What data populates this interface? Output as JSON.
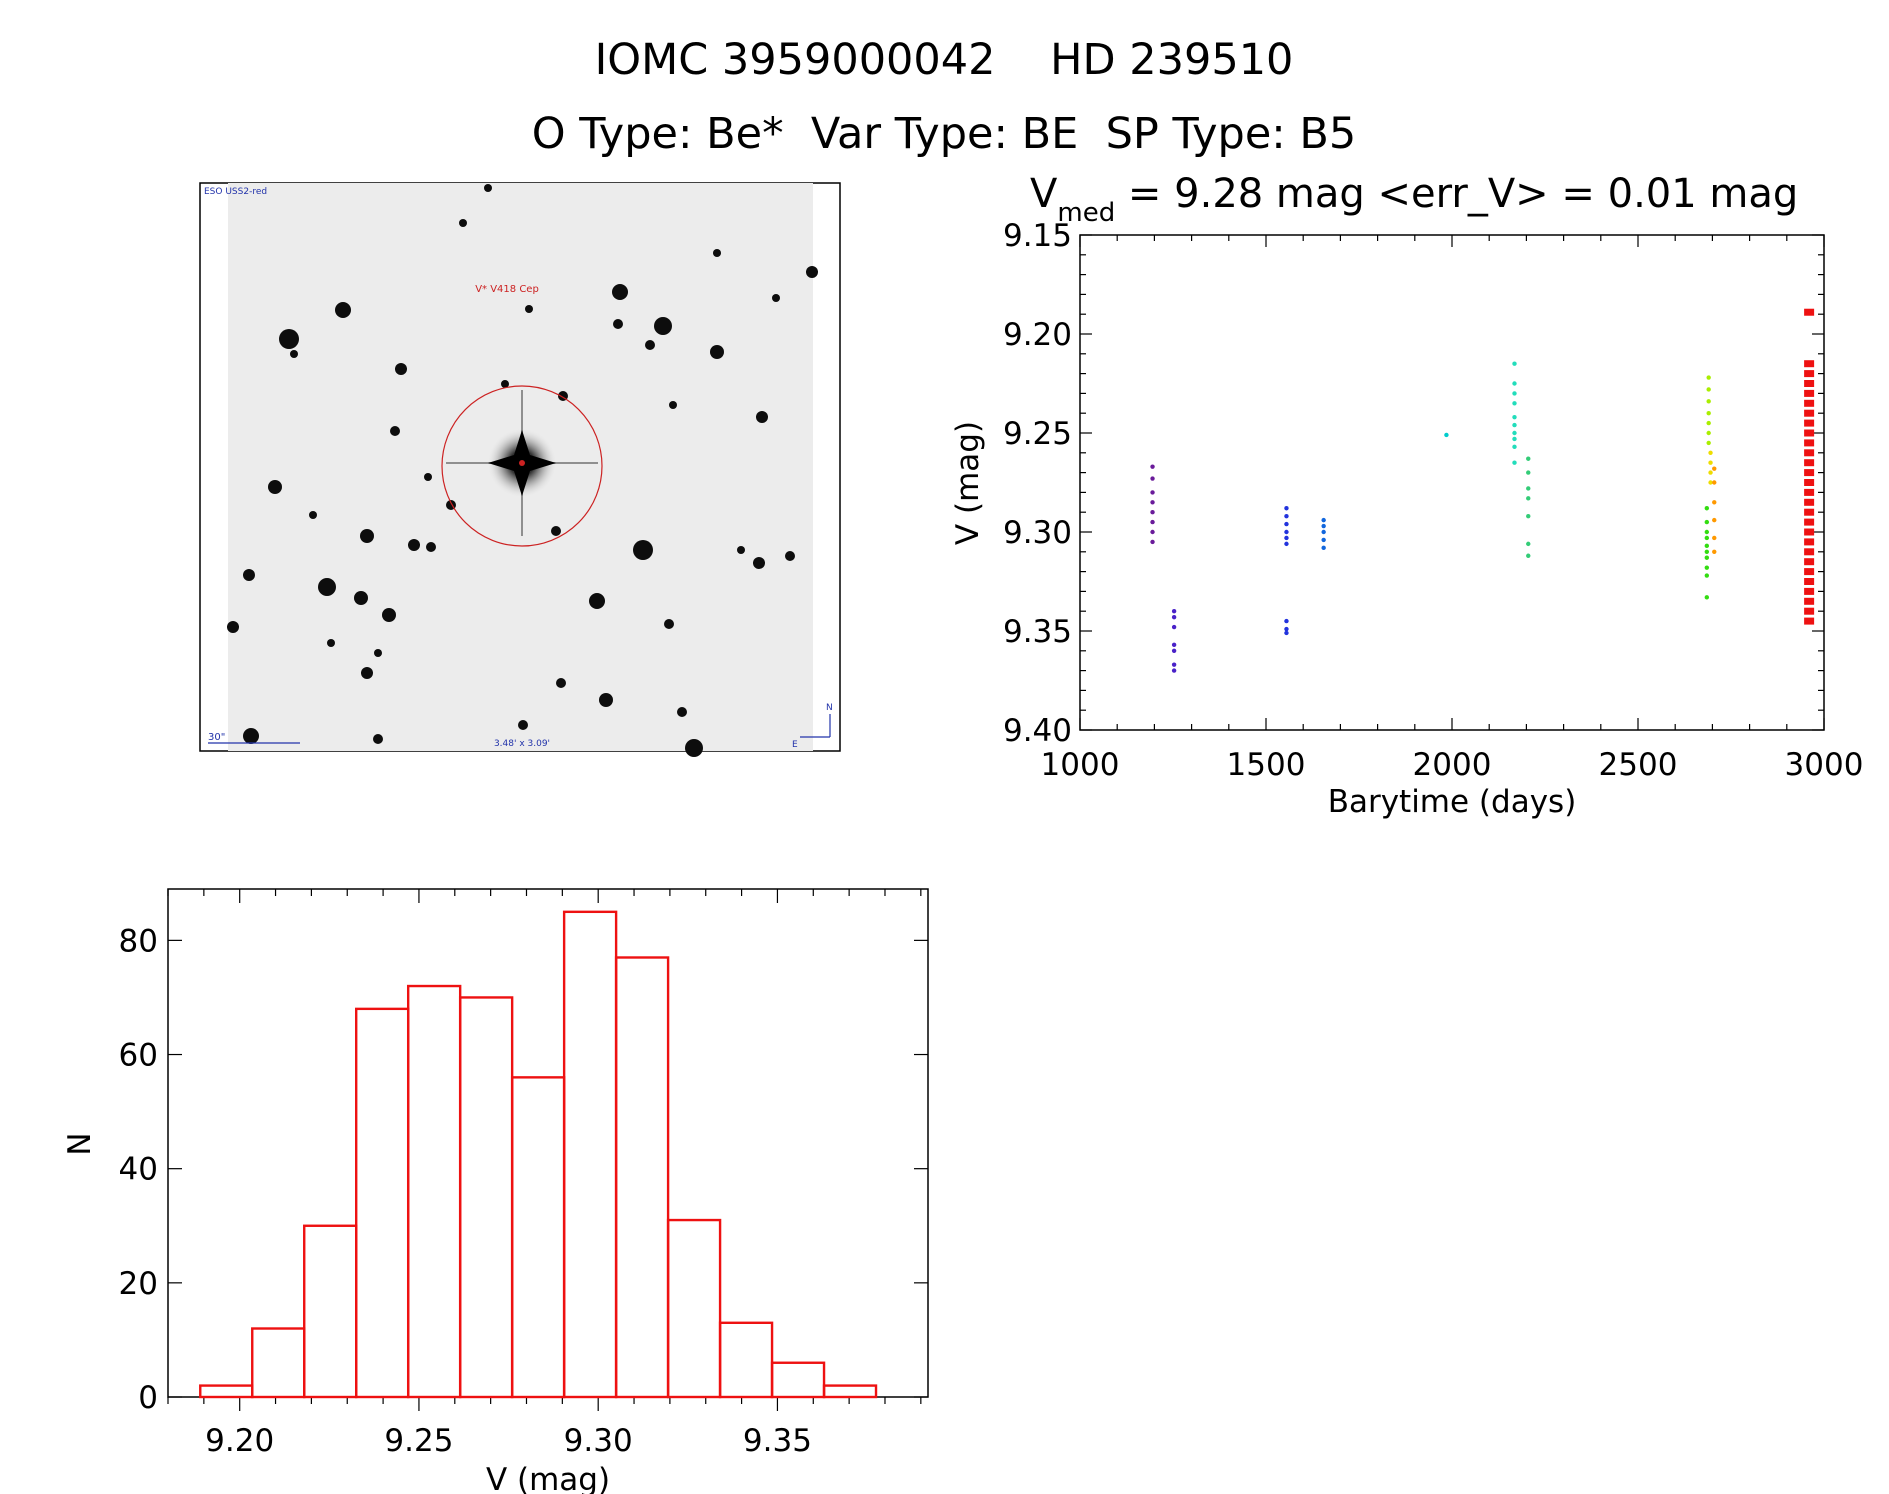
{
  "header": {
    "title": "IOMC 3959000042    HD 239510",
    "subtitle": "O Type: Be*  Var Type: BE  SP Type: B5"
  },
  "finder": {
    "survey_label": "ESO USS2-red",
    "target_label": "V* V418 Cep",
    "scale_label": "30\"",
    "size_label": "3.48' x 3.09'",
    "north_label": "N",
    "east_label": "E",
    "colors": {
      "circle": "#cc2222",
      "labels_blue": "#2233aa",
      "labels_red": "#cc2222"
    }
  },
  "chart_data": [
    {
      "type": "scatter",
      "title_parts": {
        "v": "V",
        "sub": "med",
        "rest": " = 9.28 mag <err_V> = 0.01 mag"
      },
      "xlabel": "Barytime (days)",
      "ylabel": "V (mag)",
      "xlim": [
        1000,
        3000
      ],
      "ylim": [
        9.4,
        9.15
      ],
      "xticks": [
        "1000",
        "1500",
        "2000",
        "2500",
        "3000"
      ],
      "yticks": [
        "9.15",
        "9.20",
        "9.25",
        "9.30",
        "9.35",
        "9.40"
      ],
      "groups": [
        {
          "x": 1195,
          "color": "#6a1b9a",
          "y": [
            9.267,
            9.273,
            9.28,
            9.285,
            9.29,
            9.295,
            9.3,
            9.305
          ]
        },
        {
          "x": 1253,
          "color": "#4a22c8",
          "y": [
            9.34,
            9.343,
            9.348,
            9.357,
            9.36,
            9.367,
            9.37
          ]
        },
        {
          "x": 1555,
          "color": "#2233dd",
          "y": [
            9.288,
            9.292,
            9.296,
            9.3,
            9.303,
            9.306,
            9.345,
            9.349,
            9.351
          ]
        },
        {
          "x": 1655,
          "color": "#1166dd",
          "y": [
            9.294,
            9.297,
            9.3,
            9.304,
            9.308
          ]
        },
        {
          "x": 1985,
          "color": "#00cccc",
          "y": [
            9.251
          ]
        },
        {
          "x": 2168,
          "color": "#22ddbb",
          "y": [
            9.215,
            9.225,
            9.23,
            9.235,
            9.242,
            9.246,
            9.25,
            9.253,
            9.257,
            9.265
          ]
        },
        {
          "x": 2205,
          "color": "#33cc77",
          "y": [
            9.263,
            9.27,
            9.278,
            9.283,
            9.292,
            9.306,
            9.312
          ]
        },
        {
          "x": 2685,
          "color": "#33dd11",
          "y": [
            9.288,
            9.295,
            9.3,
            9.303,
            9.307,
            9.31,
            9.313,
            9.318,
            9.322,
            9.333
          ]
        },
        {
          "x": 2690,
          "color": "#aaee00",
          "y": [
            9.222,
            9.228,
            9.234,
            9.24,
            9.245,
            9.25,
            9.255
          ]
        },
        {
          "x": 2695,
          "color": "#eedd00",
          "y": [
            9.26,
            9.265,
            9.27,
            9.275
          ]
        },
        {
          "x": 2705,
          "color": "#ff9900",
          "y": [
            9.268,
            9.275,
            9.285,
            9.294,
            9.303,
            9.31
          ]
        },
        {
          "x": 2960,
          "color": "#ee1111",
          "y": [
            9.189,
            9.215,
            9.22,
            9.225,
            9.23,
            9.235,
            9.24,
            9.245,
            9.25,
            9.255,
            9.26,
            9.265,
            9.27,
            9.275,
            9.28,
            9.285,
            9.29,
            9.295,
            9.3,
            9.305,
            9.31,
            9.315,
            9.32,
            9.325,
            9.33,
            9.335,
            9.34,
            9.345
          ]
        }
      ]
    },
    {
      "type": "bar",
      "ylabel": "N",
      "xlabel": "V (mag)",
      "xlim": [
        9.18,
        9.392
      ],
      "ylim": [
        0,
        89
      ],
      "xticks": [
        "9.20",
        "9.25",
        "9.30",
        "9.35"
      ],
      "yticks": [
        "0",
        "20",
        "40",
        "60",
        "80"
      ],
      "bin_edges": [
        9.189,
        9.2035,
        9.218,
        9.2325,
        9.247,
        9.2615,
        9.276,
        9.2905,
        9.305,
        9.3195,
        9.334,
        9.3485,
        9.363,
        9.3775
      ],
      "counts": [
        2,
        12,
        30,
        68,
        72,
        70,
        56,
        85,
        77,
        31,
        13,
        6,
        2
      ],
      "color": "#ee1111"
    }
  ]
}
